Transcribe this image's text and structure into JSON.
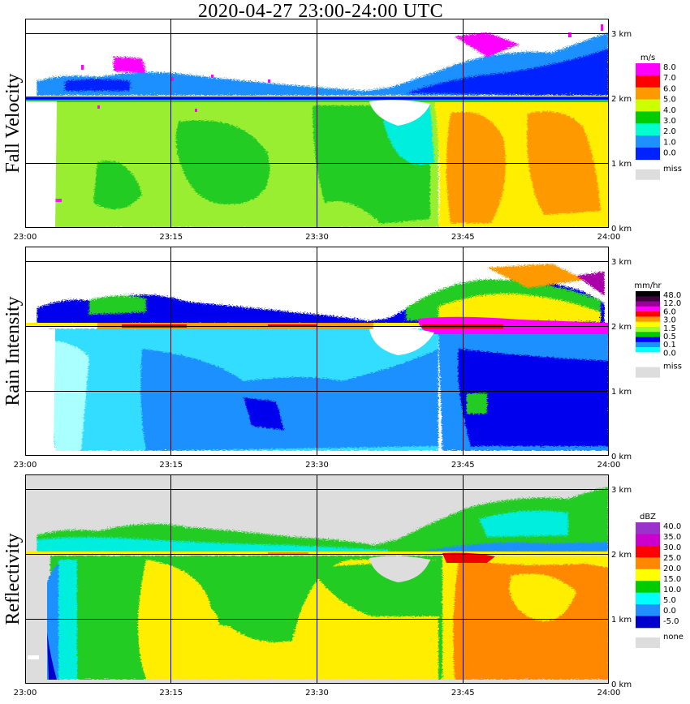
{
  "title": "2020-04-27   23:00-24:00 UTC",
  "chart_data": [
    {
      "type": "heatmap",
      "title": "Fall Velocity",
      "x_ticks": [
        "23:00",
        "23:15",
        "23:30",
        "23:45",
        "24:00"
      ],
      "y_ticks": [
        "0 km",
        "1 km",
        "2 km",
        "3 km"
      ],
      "legend_unit": "m/s",
      "legend_labels": [
        "8.0",
        "7.0",
        "6.0",
        "5.0",
        "4.0",
        "3.0",
        "2.0",
        "1.0",
        "0.0"
      ],
      "legend_colors": [
        "#ff00ff",
        "#ff0000",
        "#ff9900",
        "#ccff00",
        "#00cc00",
        "#00ffcc",
        "#1e90ff",
        "#0022ff"
      ],
      "missing_label": "miss",
      "missing_color": "#dddddd"
    },
    {
      "type": "heatmap",
      "title": "Rain Intensity",
      "x_ticks": [
        "23:00",
        "23:15",
        "23:30",
        "23:45",
        "24:00"
      ],
      "y_ticks": [
        "0 km",
        "1 km",
        "2 km",
        "3 km"
      ],
      "legend_unit": "mm/hr",
      "legend_labels": [
        "48.0",
        "12.0",
        "6.0",
        "3.0",
        "1.5",
        "0.5",
        "0.1",
        "0.0"
      ],
      "legend_colors": [
        "#000000",
        "#400040",
        "#990099",
        "#ff00ff",
        "#ff0000",
        "#ff9900",
        "#ffff00",
        "#99ff33",
        "#00cc00",
        "#0000ff",
        "#1e90ff",
        "#00ffff",
        "#ffffff"
      ],
      "missing_label": "miss",
      "missing_color": "#dddddd"
    },
    {
      "type": "heatmap",
      "title": "Reflectivity",
      "x_ticks": [
        "23:00",
        "23:15",
        "23:30",
        "23:45",
        "24:00"
      ],
      "y_ticks": [
        "0 km",
        "1 km",
        "2 km",
        "3 km"
      ],
      "legend_unit": "dBZ",
      "legend_labels": [
        "40.0",
        "35.0",
        "30.0",
        "25.0",
        "20.0",
        "15.0",
        "10.0",
        "5.0",
        "0.0",
        "-5.0"
      ],
      "legend_colors": [
        "#9933cc",
        "#cc00cc",
        "#ff0000",
        "#ff8800",
        "#ffff00",
        "#00cc00",
        "#00ffff",
        "#1e90ff",
        "#0000cc"
      ],
      "missing_label": "none",
      "missing_color": "#dddddd"
    }
  ]
}
